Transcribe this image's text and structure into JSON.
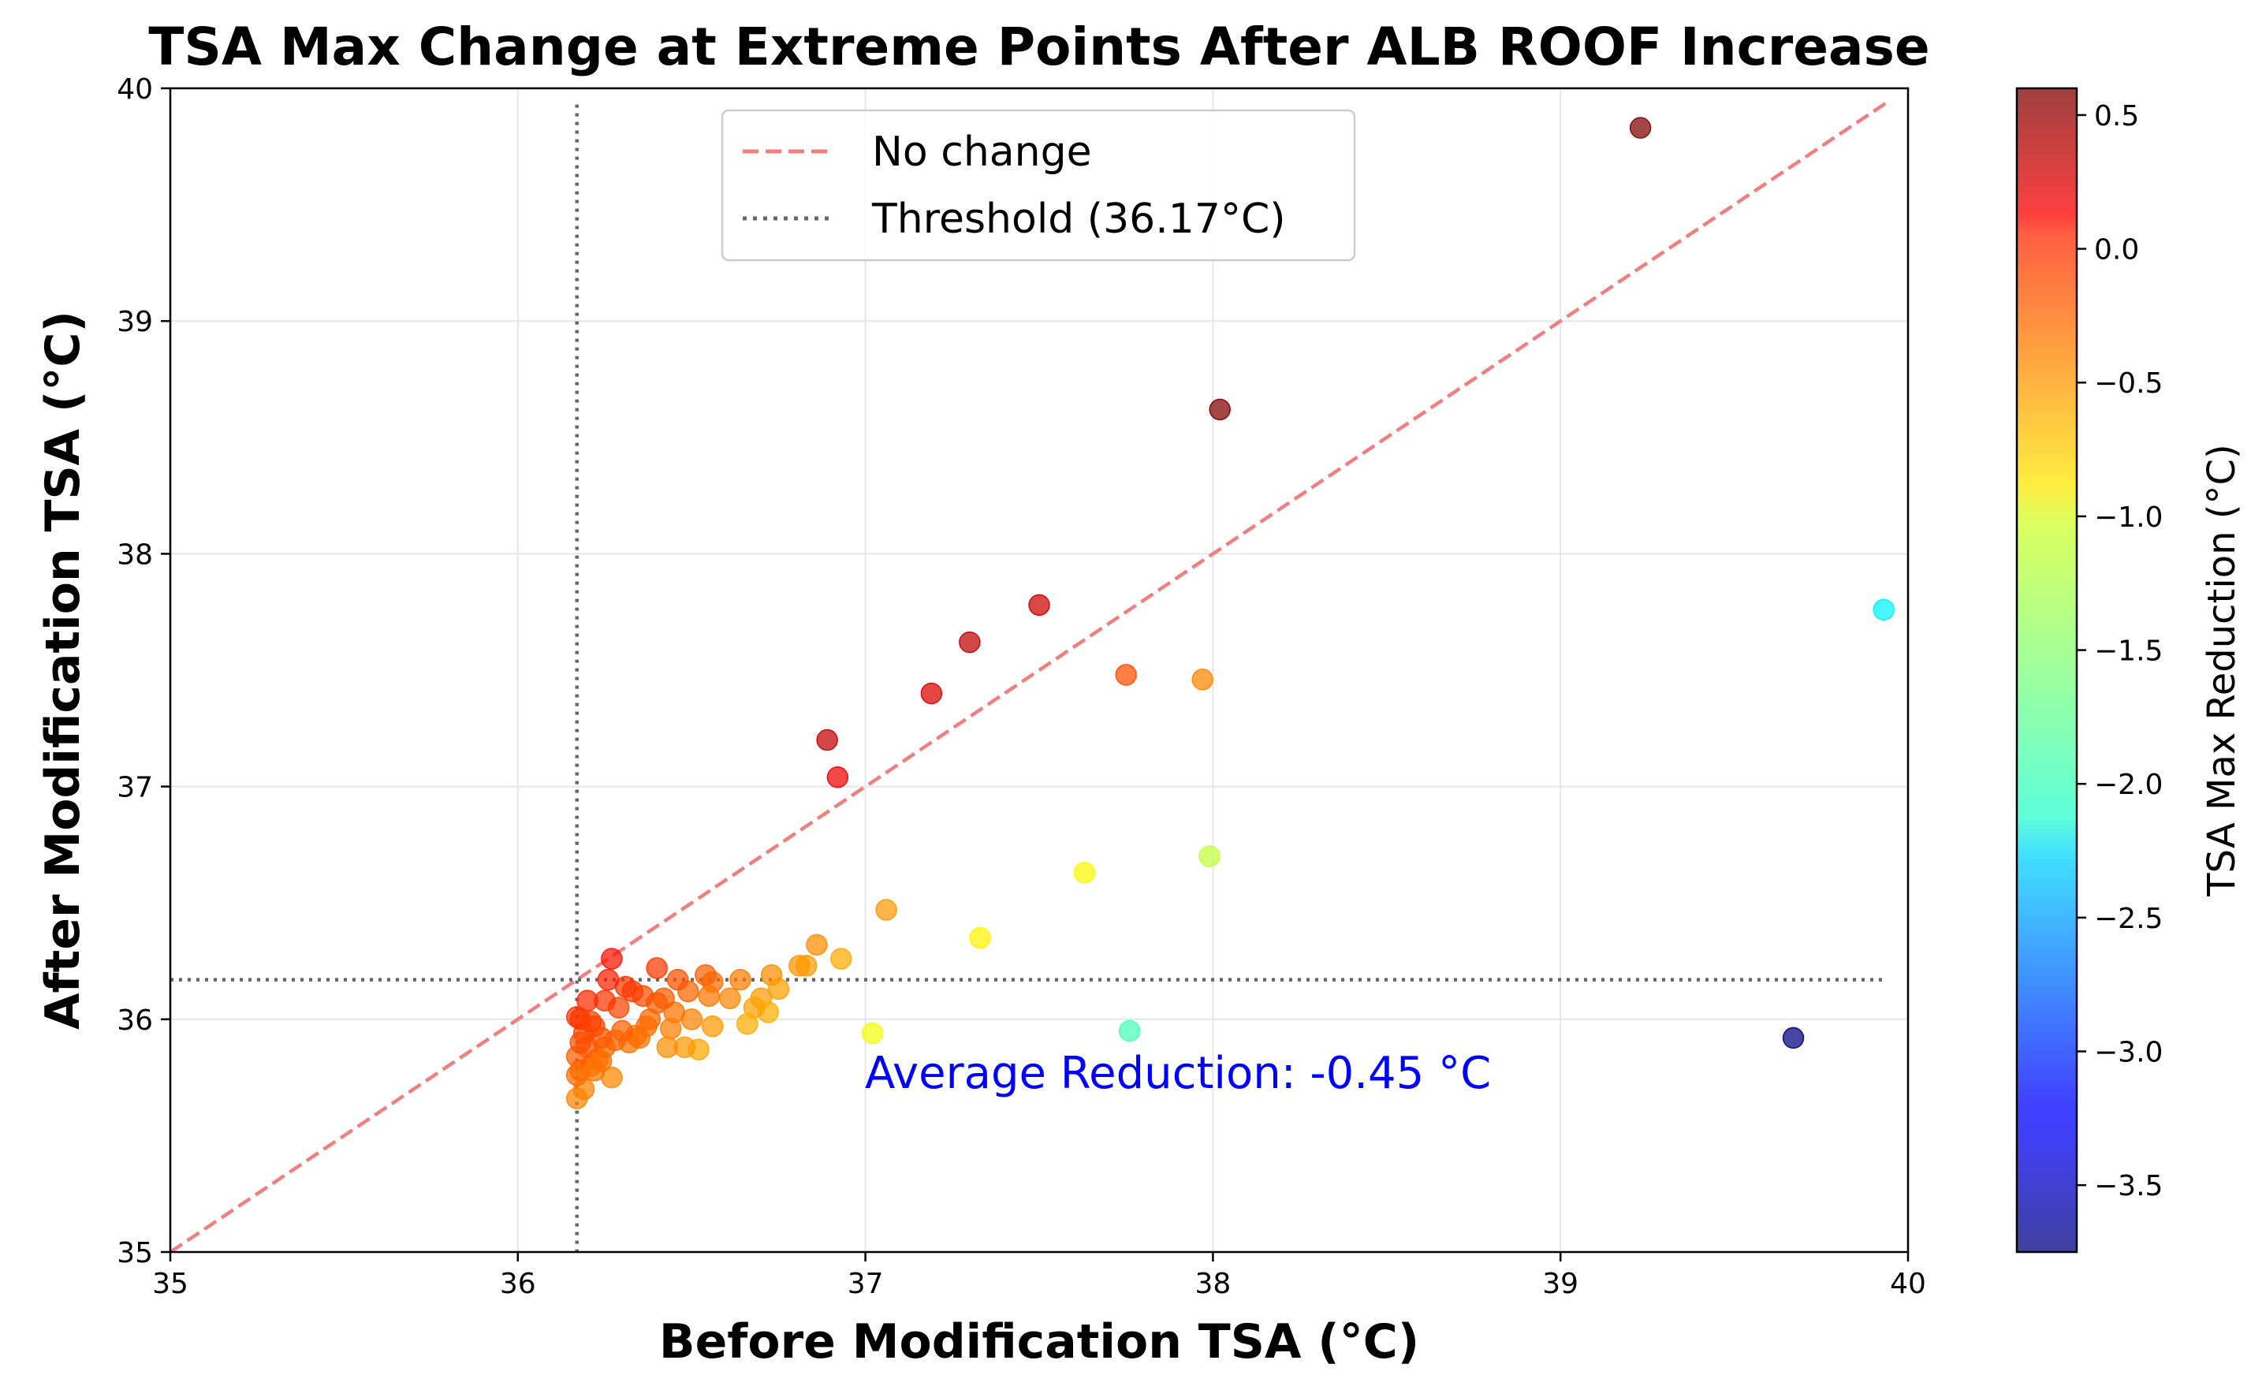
{
  "chart_data": {
    "type": "scatter",
    "title": "TSA Max Change at Extreme Points After ALB ROOF Increase",
    "xlabel": "Before Modification TSA (°C)",
    "ylabel": "After Modification TSA (°C)",
    "xlim": [
      35,
      40
    ],
    "ylim": [
      35,
      40
    ],
    "xticks": [
      35,
      36,
      37,
      38,
      39,
      40
    ],
    "yticks": [
      35,
      36,
      37,
      38,
      39,
      40
    ],
    "grid": true,
    "legend": {
      "placement": "top-center",
      "entries": [
        {
          "label": "No change",
          "style": "dashed",
          "color": "#f08080"
        },
        {
          "label": "Threshold (36.17°C)",
          "style": "dotted",
          "color": "#666666"
        }
      ]
    },
    "threshold": 36.17,
    "identity_line": [
      [
        35,
        35
      ],
      [
        39.94,
        39.94
      ]
    ],
    "colorbar": {
      "label": "TSA Max Reduction (°C)",
      "range": [
        -3.75,
        0.6
      ],
      "colormap": "jet",
      "ticks": [
        0.5,
        0.0,
        -0.5,
        -1.0,
        -1.5,
        -2.0,
        -2.5,
        -3.0,
        -3.5
      ],
      "tick_labels": [
        "0.5",
        "0.0",
        "−0.5",
        "−1.0",
        "−1.5",
        "−2.0",
        "−2.5",
        "−3.0",
        "−3.5"
      ]
    },
    "annotation": "Average Reduction: -0.45 °C",
    "points": [
      {
        "x": 39.23,
        "y": 39.83
      },
      {
        "x": 38.02,
        "y": 38.62
      },
      {
        "x": 37.5,
        "y": 37.78
      },
      {
        "x": 37.3,
        "y": 37.62
      },
      {
        "x": 37.19,
        "y": 37.4
      },
      {
        "x": 36.89,
        "y": 37.2
      },
      {
        "x": 36.92,
        "y": 37.04
      },
      {
        "x": 37.75,
        "y": 37.48
      },
      {
        "x": 37.97,
        "y": 37.46
      },
      {
        "x": 39.93,
        "y": 37.76
      },
      {
        "x": 39.67,
        "y": 35.92
      },
      {
        "x": 37.63,
        "y": 36.63
      },
      {
        "x": 37.99,
        "y": 36.7
      },
      {
        "x": 37.33,
        "y": 36.35
      },
      {
        "x": 37.76,
        "y": 35.95
      },
      {
        "x": 37.02,
        "y": 35.94
      },
      {
        "x": 37.06,
        "y": 36.47
      },
      {
        "x": 36.93,
        "y": 36.26
      },
      {
        "x": 36.86,
        "y": 36.32
      },
      {
        "x": 36.81,
        "y": 36.23
      },
      {
        "x": 36.83,
        "y": 36.23
      },
      {
        "x": 36.73,
        "y": 36.19
      },
      {
        "x": 36.75,
        "y": 36.13
      },
      {
        "x": 36.7,
        "y": 36.09
      },
      {
        "x": 36.72,
        "y": 36.03
      },
      {
        "x": 36.68,
        "y": 36.05
      },
      {
        "x": 36.66,
        "y": 35.98
      },
      {
        "x": 36.64,
        "y": 36.17
      },
      {
        "x": 36.61,
        "y": 36.09
      },
      {
        "x": 36.56,
        "y": 36.16
      },
      {
        "x": 36.54,
        "y": 36.19
      },
      {
        "x": 36.55,
        "y": 36.1
      },
      {
        "x": 36.56,
        "y": 35.97
      },
      {
        "x": 36.52,
        "y": 35.87
      },
      {
        "x": 36.5,
        "y": 36.0
      },
      {
        "x": 36.48,
        "y": 35.88
      },
      {
        "x": 36.49,
        "y": 36.12
      },
      {
        "x": 36.46,
        "y": 36.17
      },
      {
        "x": 36.45,
        "y": 36.03
      },
      {
        "x": 36.44,
        "y": 35.96
      },
      {
        "x": 36.42,
        "y": 36.09
      },
      {
        "x": 36.43,
        "y": 35.88
      },
      {
        "x": 36.4,
        "y": 36.22
      },
      {
        "x": 36.4,
        "y": 36.07
      },
      {
        "x": 36.38,
        "y": 36.0
      },
      {
        "x": 36.37,
        "y": 35.97
      },
      {
        "x": 36.36,
        "y": 36.1
      },
      {
        "x": 36.35,
        "y": 35.92
      },
      {
        "x": 36.34,
        "y": 35.93
      },
      {
        "x": 36.33,
        "y": 36.12
      },
      {
        "x": 36.32,
        "y": 35.9
      },
      {
        "x": 36.31,
        "y": 36.14
      },
      {
        "x": 36.3,
        "y": 35.95
      },
      {
        "x": 36.29,
        "y": 36.05
      },
      {
        "x": 36.28,
        "y": 35.91
      },
      {
        "x": 36.27,
        "y": 36.26
      },
      {
        "x": 36.27,
        "y": 35.75
      },
      {
        "x": 36.26,
        "y": 36.17
      },
      {
        "x": 36.25,
        "y": 35.88
      },
      {
        "x": 36.25,
        "y": 36.08
      },
      {
        "x": 36.24,
        "y": 35.92
      },
      {
        "x": 36.23,
        "y": 35.83
      },
      {
        "x": 36.22,
        "y": 35.97
      },
      {
        "x": 36.21,
        "y": 35.8
      },
      {
        "x": 36.2,
        "y": 36.08
      },
      {
        "x": 36.2,
        "y": 35.88
      },
      {
        "x": 36.19,
        "y": 35.7
      },
      {
        "x": 36.19,
        "y": 35.94
      },
      {
        "x": 36.18,
        "y": 36.0
      },
      {
        "x": 36.18,
        "y": 35.78
      },
      {
        "x": 36.17,
        "y": 35.84
      },
      {
        "x": 36.17,
        "y": 35.66
      },
      {
        "x": 36.17,
        "y": 36.01
      },
      {
        "x": 36.17,
        "y": 35.76
      },
      {
        "x": 36.22,
        "y": 35.78
      },
      {
        "x": 36.24,
        "y": 35.82
      },
      {
        "x": 36.21,
        "y": 35.99
      },
      {
        "x": 36.18,
        "y": 35.9
      }
    ]
  }
}
